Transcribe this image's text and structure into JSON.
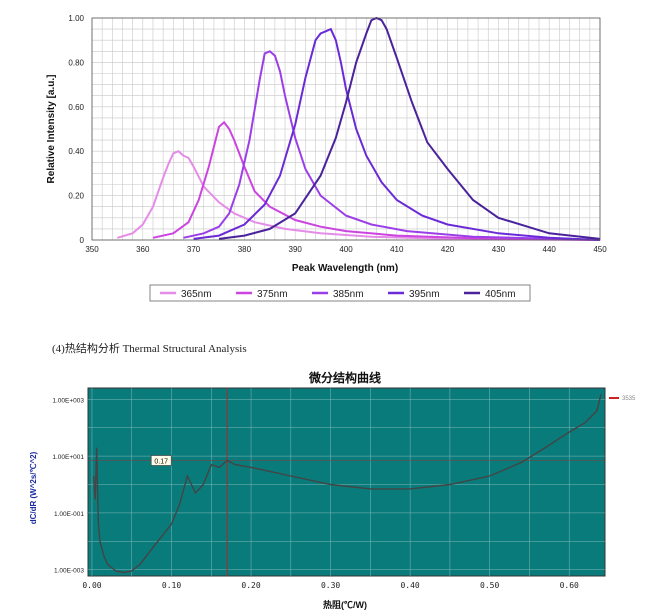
{
  "section_heading": "(4)热结构分析 Thermal Structural Analysis",
  "chart_data": [
    {
      "type": "line",
      "xlabel": "Peak Wavelength (nm)",
      "ylabel": "Relative Intensity [a.u.]",
      "xlim": [
        350,
        450
      ],
      "ylim": [
        0,
        1.0
      ],
      "x_ticks": [
        "350",
        "360",
        "370",
        "380",
        "390",
        "400",
        "410",
        "420",
        "430",
        "440",
        "450"
      ],
      "y_ticks": [
        "0",
        "0.20",
        "0.40",
        "0.60",
        "0.80",
        "1.00"
      ],
      "grid": true,
      "legend_position": "bottom",
      "series": [
        {
          "name": "365nm",
          "color": "#e58be8",
          "x": [
            355,
            358,
            360,
            362,
            364,
            365,
            366,
            367,
            368,
            369,
            370,
            372,
            375,
            378,
            382,
            388,
            395,
            405,
            420,
            450
          ],
          "y": [
            0.01,
            0.03,
            0.07,
            0.15,
            0.28,
            0.34,
            0.39,
            0.4,
            0.38,
            0.37,
            0.33,
            0.24,
            0.17,
            0.12,
            0.08,
            0.05,
            0.03,
            0.015,
            0.005,
            0
          ]
        },
        {
          "name": "375nm",
          "color": "#cc44e0",
          "x": [
            362,
            366,
            369,
            371,
            373,
            374,
            375,
            376,
            377,
            378,
            380,
            382,
            385,
            390,
            395,
            400,
            410,
            425,
            450
          ],
          "y": [
            0.01,
            0.03,
            0.08,
            0.18,
            0.33,
            0.42,
            0.51,
            0.53,
            0.5,
            0.45,
            0.33,
            0.22,
            0.15,
            0.09,
            0.06,
            0.04,
            0.02,
            0.008,
            0
          ]
        },
        {
          "name": "385nm",
          "color": "#9b3ee8",
          "x": [
            368,
            372,
            375,
            377,
            379,
            381,
            383,
            384,
            385,
            386,
            387,
            388,
            390,
            392,
            395,
            400,
            405,
            412,
            425,
            450
          ],
          "y": [
            0.01,
            0.03,
            0.06,
            0.12,
            0.25,
            0.45,
            0.72,
            0.84,
            0.85,
            0.83,
            0.76,
            0.65,
            0.46,
            0.32,
            0.2,
            0.11,
            0.07,
            0.04,
            0.015,
            0
          ]
        },
        {
          "name": "395nm",
          "color": "#6b2ad8",
          "x": [
            370,
            375,
            380,
            384,
            387,
            390,
            392,
            394,
            395,
            396,
            397,
            398,
            399,
            400,
            402,
            404,
            407,
            410,
            415,
            420,
            430,
            440,
            450
          ],
          "y": [
            0.005,
            0.02,
            0.07,
            0.16,
            0.29,
            0.52,
            0.73,
            0.9,
            0.93,
            0.94,
            0.95,
            0.9,
            0.8,
            0.68,
            0.5,
            0.38,
            0.26,
            0.18,
            0.11,
            0.07,
            0.03,
            0.01,
            0
          ]
        },
        {
          "name": "405nm",
          "color": "#4a239c",
          "x": [
            375,
            380,
            385,
            390,
            395,
            398,
            400,
            402,
            404,
            405,
            406,
            407,
            408,
            410,
            413,
            416,
            420,
            425,
            430,
            440,
            450
          ],
          "y": [
            0.005,
            0.02,
            0.05,
            0.12,
            0.29,
            0.46,
            0.62,
            0.8,
            0.93,
            0.99,
            1.0,
            0.99,
            0.95,
            0.82,
            0.62,
            0.44,
            0.32,
            0.18,
            0.1,
            0.03,
            0.005
          ]
        }
      ]
    },
    {
      "type": "line",
      "title": "微分结构曲线",
      "xlabel": "热阻(℃/W)",
      "ylabel": "dC/dR (W^2s/℃^2)",
      "y_scale": "log",
      "xlim": [
        -0.005,
        0.645
      ],
      "ylim": [
        0.0006,
        2500
      ],
      "x_ticks": [
        "0.00",
        "0.10",
        "0.20",
        "0.30",
        "0.40",
        "0.50",
        "0.60"
      ],
      "y_ticks": [
        "1.00E+003",
        "1.00E+001",
        "1.00E-001",
        "1.00E-003"
      ],
      "y_tick_values": [
        1000,
        10,
        0.1,
        0.001
      ],
      "grid": true,
      "background": "#0a7b7b",
      "cursor_x": 0.17,
      "cursor_label": "0.17",
      "marker_label": "3535",
      "series": [
        {
          "name": "",
          "color": "#444444",
          "x": [
            0.002,
            0.004,
            0.006,
            0.008,
            0.01,
            0.015,
            0.02,
            0.03,
            0.04,
            0.05,
            0.06,
            0.08,
            0.1,
            0.11,
            0.12,
            0.13,
            0.14,
            0.15,
            0.16,
            0.17,
            0.18,
            0.2,
            0.25,
            0.3,
            0.35,
            0.4,
            0.45,
            0.5,
            0.54,
            0.57,
            0.6,
            0.62,
            0.635,
            0.64
          ],
          "y": [
            2,
            0.3,
            20,
            0.05,
            0.01,
            0.003,
            0.0015,
            0.0009,
            0.0008,
            0.0009,
            0.0015,
            0.008,
            0.04,
            0.2,
            2,
            0.5,
            1,
            5,
            4,
            7,
            5,
            4,
            2,
            1,
            0.7,
            0.7,
            1,
            2,
            6,
            20,
            70,
            150,
            400,
            1500
          ]
        }
      ]
    }
  ],
  "colors": {
    "plot2_background": "#0a7b7b",
    "cursor": "#8a3a3a",
    "marker": "#cc2222"
  }
}
